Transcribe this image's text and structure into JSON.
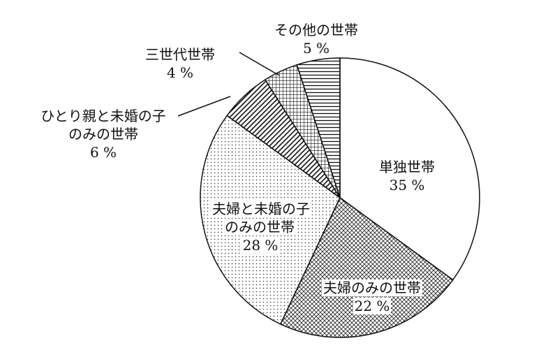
{
  "chart_data": {
    "type": "pie",
    "categories": [
      "単独世帯",
      "夫婦のみの世帯",
      "夫婦と未婚の子\nのみの世帯",
      "ひとり親と未婚の子\nのみの世帯",
      "三世代世帯",
      "その他の世帯"
    ],
    "values": [
      35,
      22,
      28,
      6,
      4,
      5
    ],
    "value_labels": [
      "35 %",
      "22 %",
      "28 %",
      "6 %",
      "4 %",
      "5 %"
    ],
    "patterns": [
      "none",
      "crosshatch",
      "dots",
      "diagonal",
      "grid",
      "horizontal"
    ]
  }
}
